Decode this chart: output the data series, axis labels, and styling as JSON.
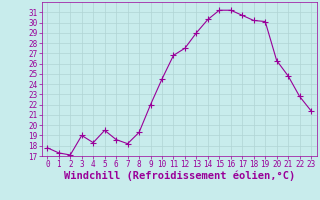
{
  "x": [
    0,
    1,
    2,
    3,
    4,
    5,
    6,
    7,
    8,
    9,
    10,
    11,
    12,
    13,
    14,
    15,
    16,
    17,
    18,
    19,
    20,
    21,
    22,
    23
  ],
  "y": [
    17.8,
    17.3,
    17.1,
    19.0,
    18.3,
    19.5,
    18.6,
    18.2,
    19.3,
    22.0,
    24.5,
    26.8,
    27.5,
    29.0,
    30.3,
    31.2,
    31.2,
    30.7,
    30.2,
    30.1,
    26.3,
    24.8,
    22.8,
    21.4
  ],
  "line_color": "#990099",
  "marker": "+",
  "bg_color": "#c8ecec",
  "grid_color": "#b0d4d4",
  "xlabel": "Windchill (Refroidissement éolien,°C)",
  "ylim": [
    17,
    32
  ],
  "xlim": [
    -0.5,
    23.5
  ],
  "yticks": [
    17,
    18,
    19,
    20,
    21,
    22,
    23,
    24,
    25,
    26,
    27,
    28,
    29,
    30,
    31
  ],
  "xticks": [
    0,
    1,
    2,
    3,
    4,
    5,
    6,
    7,
    8,
    9,
    10,
    11,
    12,
    13,
    14,
    15,
    16,
    17,
    18,
    19,
    20,
    21,
    22,
    23
  ],
  "tick_color": "#990099",
  "tick_fontsize": 5.5,
  "xlabel_fontsize": 7.5,
  "spine_color": "#990099",
  "fig_width": 3.2,
  "fig_height": 2.0,
  "dpi": 100
}
